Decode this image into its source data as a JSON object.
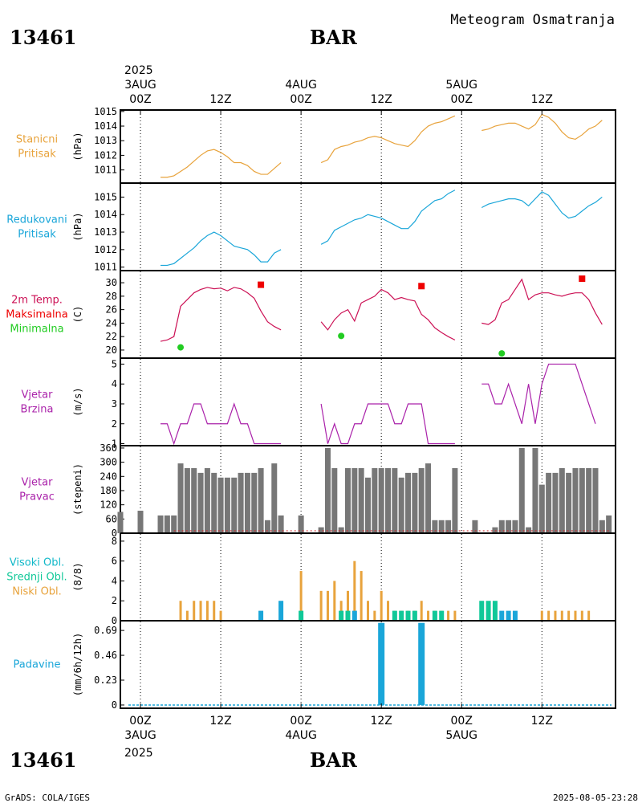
{
  "header": {
    "station_id": "13461",
    "station_name": "BAR",
    "title": "Meteogram Osmatranja",
    "footer_left": "GrADS: COLA/IGES",
    "footer_right": "2025-08-05-23:28"
  },
  "time_axis": {
    "top_year": "2025",
    "bottom_year": "2025",
    "ticks": [
      {
        "hour": 0,
        "label": "00Z",
        "date": "3AUG"
      },
      {
        "hour": 12,
        "label": "12Z",
        "date": ""
      },
      {
        "hour": 24,
        "label": "00Z",
        "date": "4AUG"
      },
      {
        "hour": 36,
        "label": "12Z",
        "date": ""
      },
      {
        "hour": 48,
        "label": "00Z",
        "date": "5AUG"
      },
      {
        "hour": 60,
        "label": "12Z",
        "date": ""
      }
    ],
    "range_hours": [
      -3,
      71
    ]
  },
  "panels": {
    "stn_pressure": {
      "label": [
        "Stanicni",
        "Pritisak"
      ],
      "unit": "(hPa)",
      "color": "#e8a33c"
    },
    "red_pressure": {
      "label": [
        "Redukovani",
        "Pritisak"
      ],
      "unit": "(hPa)",
      "color": "#1aa6d9"
    },
    "temperature": {
      "label": [
        "2m Temp.",
        "Maksimalna",
        "Minimalna"
      ],
      "unit": "(C)",
      "colors": [
        "#cc1155",
        "#ee0000",
        "#22cc22"
      ]
    },
    "wind_speed": {
      "label": [
        "Vjetar",
        "Brzina"
      ],
      "unit": "(m/s)",
      "color": "#aa22aa"
    },
    "wind_dir": {
      "label": [
        "Vjetar",
        "Pravac"
      ],
      "unit": "(stepeni)",
      "color": "#aa22aa"
    },
    "clouds": {
      "label": [
        "Visoki Obl.",
        "Srednji Obl.",
        "Niski Obl."
      ],
      "unit": "(8/8)",
      "colors": [
        "#10b8c8",
        "#10c898",
        "#e8a33c"
      ]
    },
    "precip": {
      "label": [
        "Padavine"
      ],
      "unit": "(mm/6h/12h)",
      "color": "#1aa6d9"
    }
  },
  "chart_data": [
    {
      "type": "line",
      "title": "Stanicni Pritisak",
      "ylabel": "(hPa)",
      "ylim": [
        1010.1,
        1015.1
      ],
      "yticks": [
        1011,
        1012,
        1013,
        1014,
        1015
      ],
      "series": [
        {
          "name": "day1",
          "x": [
            3,
            4,
            5,
            6,
            7,
            8,
            9,
            10,
            11,
            12,
            13,
            14,
            15,
            16,
            17,
            18,
            19,
            20,
            21
          ],
          "values": [
            1010.5,
            1010.5,
            1010.6,
            1010.9,
            1011.2,
            1011.6,
            1012.0,
            1012.3,
            1012.4,
            1012.2,
            1011.9,
            1011.5,
            1011.5,
            1011.3,
            1010.9,
            1010.7,
            1010.7,
            1011.1,
            1011.5
          ]
        },
        {
          "name": "day2",
          "x": [
            27,
            28,
            29,
            30,
            31,
            32,
            33,
            34,
            35,
            36,
            37,
            38,
            39,
            40,
            41,
            42,
            43,
            44,
            45,
            46,
            47
          ],
          "values": [
            1011.5,
            1011.7,
            1012.4,
            1012.6,
            1012.7,
            1012.9,
            1013.0,
            1013.2,
            1013.3,
            1013.2,
            1013.0,
            1012.8,
            1012.7,
            1012.6,
            1013.0,
            1013.6,
            1014.0,
            1014.2,
            1014.3,
            1014.5,
            1014.7
          ]
        },
        {
          "name": "day3",
          "x": [
            51,
            52,
            53,
            54,
            55,
            56,
            57,
            58,
            59,
            60,
            61,
            62,
            63,
            64,
            65,
            66,
            67,
            68,
            69
          ],
          "values": [
            1013.7,
            1013.8,
            1014.0,
            1014.1,
            1014.2,
            1014.2,
            1014.0,
            1013.8,
            1014.1,
            1014.8,
            1014.6,
            1014.2,
            1013.6,
            1013.2,
            1013.1,
            1013.4,
            1013.8,
            1014.0,
            1014.4
          ]
        }
      ]
    },
    {
      "type": "line",
      "title": "Redukovani Pritisak",
      "ylabel": "(hPa)",
      "ylim": [
        1010.8,
        1015.8
      ],
      "yticks": [
        1011,
        1012,
        1013,
        1014,
        1015
      ],
      "series": [
        {
          "name": "day1",
          "x": [
            3,
            4,
            5,
            6,
            7,
            8,
            9,
            10,
            11,
            12,
            13,
            14,
            15,
            16,
            17,
            18,
            19,
            20,
            21
          ],
          "values": [
            1011.1,
            1011.1,
            1011.2,
            1011.5,
            1011.8,
            1012.1,
            1012.5,
            1012.8,
            1013.0,
            1012.8,
            1012.5,
            1012.2,
            1012.1,
            1012.0,
            1011.7,
            1011.3,
            1011.3,
            1011.8,
            1012.0
          ]
        },
        {
          "name": "day2",
          "x": [
            27,
            28,
            29,
            30,
            31,
            32,
            33,
            34,
            35,
            36,
            37,
            38,
            39,
            40,
            41,
            42,
            43,
            44,
            45,
            46,
            47
          ],
          "values": [
            1012.3,
            1012.5,
            1013.1,
            1013.3,
            1013.5,
            1013.7,
            1013.8,
            1014.0,
            1013.9,
            1013.8,
            1013.6,
            1013.4,
            1013.2,
            1013.2,
            1013.6,
            1014.2,
            1014.5,
            1014.8,
            1014.9,
            1015.2,
            1015.4
          ]
        },
        {
          "name": "day3",
          "x": [
            51,
            52,
            53,
            54,
            55,
            56,
            57,
            58,
            59,
            60,
            61,
            62,
            63,
            64,
            65,
            66,
            67,
            68,
            69
          ],
          "values": [
            1014.4,
            1014.6,
            1014.7,
            1014.8,
            1014.9,
            1014.9,
            1014.8,
            1014.5,
            1014.9,
            1015.3,
            1015.1,
            1014.6,
            1014.1,
            1013.8,
            1013.9,
            1014.2,
            1014.5,
            1014.7,
            1015.0
          ]
        }
      ]
    },
    {
      "type": "line",
      "title": "2m Temp. Maksimalna Minimalna",
      "ylabel": "(C)",
      "ylim": [
        18.8,
        31.8
      ],
      "yticks": [
        20,
        22,
        24,
        26,
        28,
        30
      ],
      "series": [
        {
          "name": "day1",
          "x": [
            3,
            4,
            5,
            6,
            7,
            8,
            9,
            10,
            11,
            12,
            13,
            14,
            15,
            16,
            17,
            18,
            19,
            20,
            21
          ],
          "values": [
            21.3,
            21.5,
            22.0,
            26.5,
            27.5,
            28.5,
            29.0,
            29.3,
            29.1,
            29.2,
            28.8,
            29.3,
            29.1,
            28.5,
            27.7,
            25.8,
            24.2,
            23.5,
            23.0
          ]
        },
        {
          "name": "day2",
          "x": [
            27,
            28,
            29,
            30,
            31,
            32,
            33,
            34,
            35,
            36,
            37,
            38,
            39,
            40,
            41,
            42,
            43,
            44,
            45,
            46,
            47
          ],
          "values": [
            24.2,
            23.0,
            24.5,
            25.5,
            26.0,
            24.3,
            27.0,
            27.5,
            28.0,
            29.0,
            28.5,
            27.5,
            27.8,
            27.5,
            27.3,
            25.3,
            24.5,
            23.3,
            22.6,
            22.0,
            21.5
          ]
        },
        {
          "name": "day3",
          "x": [
            51,
            52,
            53,
            54,
            55,
            56,
            57,
            58,
            59,
            60,
            61,
            62,
            63,
            64,
            65,
            66,
            67,
            68,
            69
          ],
          "values": [
            24.0,
            23.8,
            24.5,
            27.0,
            27.5,
            29.0,
            30.5,
            27.5,
            28.2,
            28.5,
            28.5,
            28.2,
            28.0,
            28.3,
            28.5,
            28.5,
            27.5,
            25.5,
            23.8
          ]
        },
        {
          "name": "max",
          "type": "scatter",
          "marker": "square",
          "x": [
            18,
            42,
            66
          ],
          "values": [
            29.7,
            29.5,
            30.6
          ]
        },
        {
          "name": "min",
          "type": "scatter",
          "marker": "circle",
          "x": [
            6,
            30,
            54
          ],
          "values": [
            20.4,
            22.1,
            19.5
          ]
        }
      ]
    },
    {
      "type": "line",
      "title": "Vjetar Brzina",
      "ylabel": "(m/s)",
      "ylim": [
        0.9,
        5.3
      ],
      "yticks": [
        1,
        2,
        3,
        4,
        5
      ],
      "series": [
        {
          "name": "day1",
          "x": [
            3,
            4,
            5,
            6,
            7,
            8,
            9,
            10,
            11,
            12,
            13,
            14,
            15,
            16,
            17,
            18,
            19,
            20,
            21
          ],
          "values": [
            2,
            2,
            1,
            2,
            2,
            3,
            3,
            2,
            2,
            2,
            2,
            3,
            2,
            2,
            1,
            1,
            1,
            1,
            1
          ]
        },
        {
          "name": "day2",
          "x": [
            27,
            28,
            29,
            30,
            31,
            32,
            33,
            34,
            35,
            36,
            37,
            38,
            39,
            40,
            41,
            42,
            43,
            44,
            45,
            46,
            47
          ],
          "values": [
            3,
            1,
            2,
            1,
            1,
            2,
            2,
            3,
            3,
            3,
            3,
            2,
            2,
            3,
            3,
            3,
            1,
            1,
            1,
            1,
            1
          ]
        },
        {
          "name": "day3",
          "x": [
            51,
            52,
            53,
            54,
            55,
            56,
            57,
            58,
            59,
            60,
            61,
            62,
            63,
            64,
            65,
            66,
            67,
            68,
            69
          ],
          "values": [
            4,
            4,
            3,
            3,
            4,
            3,
            2,
            4,
            2,
            4,
            5,
            5,
            5,
            5,
            5,
            4,
            3,
            2,
            null
          ]
        }
      ]
    },
    {
      "type": "bar",
      "title": "Vjetar Pravac",
      "ylabel": "(stepeni)",
      "ylim": [
        0,
        370
      ],
      "yticks": [
        0,
        60,
        120,
        180,
        240,
        300,
        360
      ],
      "bar_color": "#777777",
      "x": [
        -3,
        0,
        3,
        4,
        5,
        6,
        7,
        8,
        9,
        10,
        11,
        12,
        13,
        14,
        15,
        16,
        17,
        18,
        19,
        20,
        21,
        24,
        27,
        28,
        29,
        30,
        31,
        32,
        33,
        34,
        35,
        36,
        37,
        38,
        39,
        40,
        41,
        42,
        43,
        44,
        45,
        46,
        47,
        50,
        53,
        54,
        55,
        56,
        57,
        58,
        59,
        60,
        61,
        62,
        63,
        64,
        65,
        66,
        67,
        68,
        69,
        70
      ],
      "values": [
        90,
        95,
        75,
        75,
        75,
        295,
        275,
        275,
        255,
        275,
        255,
        235,
        235,
        235,
        255,
        255,
        255,
        275,
        55,
        295,
        75,
        75,
        25,
        360,
        275,
        25,
        275,
        275,
        275,
        235,
        275,
        275,
        275,
        275,
        235,
        255,
        255,
        275,
        295,
        55,
        55,
        55,
        275,
        55,
        25,
        55,
        55,
        55,
        360,
        25,
        360,
        205,
        255,
        255,
        275,
        255,
        275,
        275,
        275,
        275,
        55,
        75
      ]
    },
    {
      "type": "bar",
      "title": "Visoki Obl. Srednji Obl. Niski Obl.",
      "ylabel": "(8/8)",
      "ylim": [
        0,
        8.8
      ],
      "yticks": [
        0,
        2,
        4,
        6,
        8
      ],
      "series": [
        {
          "name": "Niski Obl.",
          "color": "#e8a33c",
          "x": [
            6,
            7,
            8,
            9,
            10,
            11,
            12,
            24,
            27,
            28,
            29,
            30,
            31,
            32,
            33,
            34,
            35,
            36,
            37,
            38,
            39,
            40,
            41,
            42,
            43,
            44,
            45,
            46,
            47,
            60,
            61,
            62,
            63,
            64,
            65,
            66,
            67
          ],
          "values": [
            2,
            1,
            2,
            2,
            2,
            2,
            1,
            5,
            3,
            3,
            4,
            2,
            3,
            6,
            5,
            2,
            1,
            3,
            2,
            1,
            1,
            1,
            1,
            2,
            1,
            1,
            1,
            1,
            1,
            1,
            1,
            1,
            1,
            1,
            1,
            1,
            1
          ]
        },
        {
          "name": "Srednji Obl.",
          "color": "#10c898",
          "x": [
            24,
            30,
            31,
            38,
            39,
            40,
            41,
            44,
            45,
            51,
            52,
            53
          ],
          "values": [
            1,
            1,
            1,
            1,
            1,
            1,
            1,
            1,
            1,
            2,
            2,
            2
          ]
        },
        {
          "name": "Visoki Obl.",
          "color": "#1aa6d9",
          "x": [
            18,
            21,
            32,
            54,
            55,
            56
          ],
          "values": [
            1,
            2,
            1,
            1,
            1,
            1
          ]
        }
      ]
    },
    {
      "type": "bar",
      "title": "Padavine",
      "ylabel": "(mm/6h/12h)",
      "ylim": [
        -0.03,
        0.78
      ],
      "yticks": [
        0,
        0.23,
        0.46,
        0.69
      ],
      "x": [
        36,
        42
      ],
      "values": [
        0.76,
        0.76
      ]
    }
  ]
}
